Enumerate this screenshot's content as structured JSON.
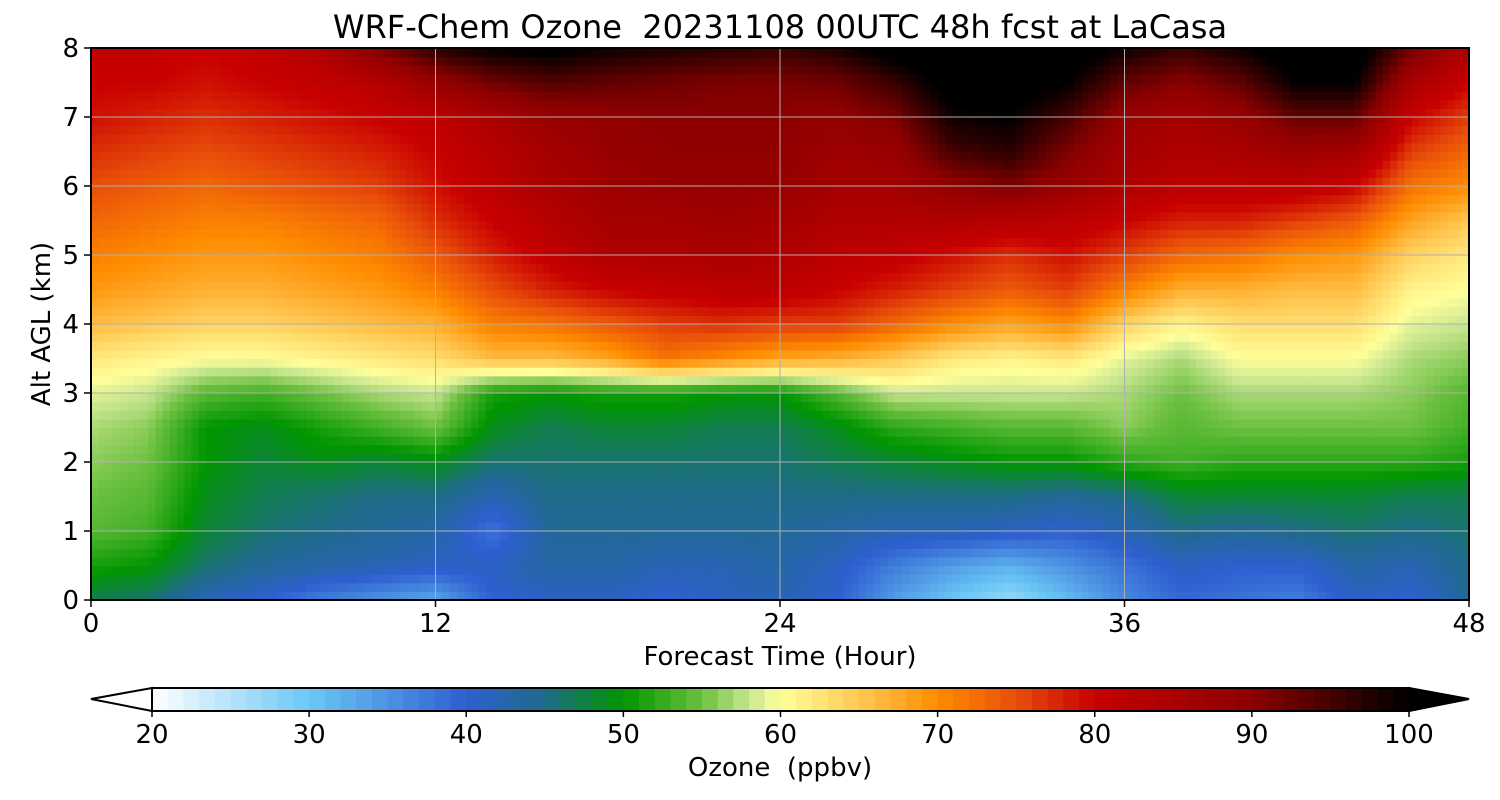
{
  "chart_data": {
    "type": "heatmap",
    "title": "WRF-Chem Ozone  20231108 00UTC 48h fcst at LaCasa",
    "xlabel": "Forecast Time (Hour)",
    "ylabel": "Alt AGL (km)",
    "xlim": [
      0,
      48
    ],
    "ylim": [
      0,
      8
    ],
    "xticks": [
      0,
      12,
      24,
      36,
      48
    ],
    "yticks": [
      0,
      1,
      2,
      3,
      4,
      5,
      6,
      7,
      8
    ],
    "grid": true,
    "x": [
      0,
      2,
      4,
      6,
      8,
      10,
      12,
      14,
      16,
      18,
      20,
      22,
      24,
      26,
      28,
      30,
      32,
      34,
      36,
      38,
      40,
      42,
      44,
      46,
      48
    ],
    "y": [
      0,
      0.5,
      1,
      1.5,
      2,
      2.5,
      3,
      3.5,
      4,
      4.5,
      5,
      5.5,
      6,
      6.5,
      7,
      7.5,
      8
    ],
    "z": [
      [
        47,
        46,
        42,
        40,
        37,
        35,
        33,
        40,
        41,
        41,
        40,
        41,
        42,
        40,
        34,
        30,
        27,
        31,
        36,
        39,
        38,
        37,
        41,
        40,
        44
      ],
      [
        51,
        50,
        46,
        44,
        43,
        42,
        41,
        41,
        43,
        43,
        42,
        42,
        43,
        41,
        37,
        34,
        32,
        35,
        38,
        41,
        40,
        40,
        43,
        42,
        45
      ],
      [
        54,
        53,
        48,
        46,
        45,
        44,
        43,
        38,
        44,
        44,
        44,
        44,
        44,
        43,
        42,
        42,
        41,
        40,
        42,
        45,
        44,
        45,
        46,
        45,
        46
      ],
      [
        55,
        54,
        49,
        47,
        46,
        45,
        45,
        42,
        45,
        45,
        45,
        45,
        45,
        45,
        45,
        45,
        45,
        44,
        45,
        48,
        48,
        48,
        48,
        47,
        47
      ],
      [
        56,
        55,
        50,
        48,
        49,
        48,
        49,
        46,
        46,
        46,
        46,
        46,
        46,
        47,
        48,
        49,
        50,
        50,
        52,
        53,
        52,
        52,
        52,
        52,
        51
      ],
      [
        57,
        56,
        50,
        49,
        51,
        53,
        55,
        49,
        47,
        48,
        48,
        47,
        47,
        49,
        52,
        53,
        54,
        54,
        56,
        54,
        55,
        55,
        55,
        55,
        53
      ],
      [
        59,
        58,
        54,
        53,
        55,
        57,
        58,
        51,
        50,
        51,
        51,
        50,
        50,
        54,
        58,
        58,
        58,
        58,
        57,
        55,
        57,
        57,
        57,
        56,
        54
      ],
      [
        62,
        61,
        60,
        60,
        61,
        62,
        63,
        66,
        66,
        68,
        72,
        70,
        68,
        67,
        65,
        62,
        61,
        62,
        59,
        57,
        60,
        60,
        60,
        57,
        56
      ],
      [
        66,
        65,
        64,
        64,
        65,
        66,
        67,
        71,
        72,
        74,
        76,
        77,
        76,
        76,
        73,
        70,
        68,
        70,
        64,
        61,
        63,
        63,
        63,
        59,
        58
      ],
      [
        69,
        68,
        67,
        67,
        68,
        69,
        71,
        75,
        78,
        80,
        81,
        82,
        82,
        80,
        78,
        76,
        74,
        76,
        71,
        67,
        67,
        66,
        66,
        61,
        60
      ],
      [
        71,
        70,
        69,
        69,
        70,
        71,
        74,
        78,
        81,
        84,
        84,
        85,
        84,
        82,
        81,
        79,
        77,
        79,
        76,
        73,
        72,
        70,
        69,
        64,
        62
      ],
      [
        73,
        72,
        71,
        71,
        72,
        73,
        77,
        80,
        83,
        86,
        86,
        87,
        86,
        84,
        84,
        84,
        83,
        82,
        80,
        78,
        78,
        76,
        74,
        68,
        65
      ],
      [
        75,
        74,
        73,
        74,
        75,
        76,
        79,
        82,
        85,
        87,
        88,
        88,
        88,
        86,
        86,
        89,
        91,
        88,
        84,
        82,
        82,
        82,
        80,
        72,
        70
      ],
      [
        77,
        76,
        75,
        76,
        77,
        78,
        80,
        83,
        86,
        88,
        89,
        89,
        89,
        87,
        88,
        95,
        97,
        91,
        86,
        84,
        85,
        87,
        86,
        76,
        73
      ],
      [
        79,
        78,
        77,
        78,
        79,
        80,
        82,
        85,
        88,
        89,
        90,
        90,
        90,
        89,
        91,
        99,
        100,
        95,
        88,
        86,
        88,
        93,
        93,
        80,
        76
      ],
      [
        80,
        80,
        79,
        80,
        81,
        83,
        88,
        92,
        94,
        93,
        92,
        91,
        91,
        92,
        96,
        102,
        102,
        100,
        93,
        90,
        93,
        100,
        100,
        85,
        80
      ],
      [
        81,
        81,
        80,
        81,
        84,
        91,
        97,
        100,
        101,
        99,
        98,
        97,
        96,
        98,
        102,
        104,
        104,
        103,
        99,
        96,
        99,
        103,
        103,
        92,
        84
      ]
    ],
    "colorbar": {
      "label": "Ozone  (ppbv)",
      "min": 20,
      "max": 100,
      "ticks": [
        20,
        30,
        40,
        50,
        60,
        70,
        80,
        90,
        100
      ],
      "extend": "both",
      "under_color": "#ffffff",
      "over_color": "#000000",
      "colors": [
        [
          20,
          "#ffffff"
        ],
        [
          30,
          "#6bc7f5"
        ],
        [
          40,
          "#2e5fd0"
        ],
        [
          45,
          "#1f6b8a"
        ],
        [
          50,
          "#009600"
        ],
        [
          55,
          "#6cc040"
        ],
        [
          58,
          "#c8e690"
        ],
        [
          60,
          "#ffff9a"
        ],
        [
          65,
          "#ffc853"
        ],
        [
          70,
          "#ff8c00"
        ],
        [
          75,
          "#e84e0a"
        ],
        [
          80,
          "#c80000"
        ],
        [
          90,
          "#8c0000"
        ],
        [
          100,
          "#000000"
        ]
      ]
    }
  }
}
